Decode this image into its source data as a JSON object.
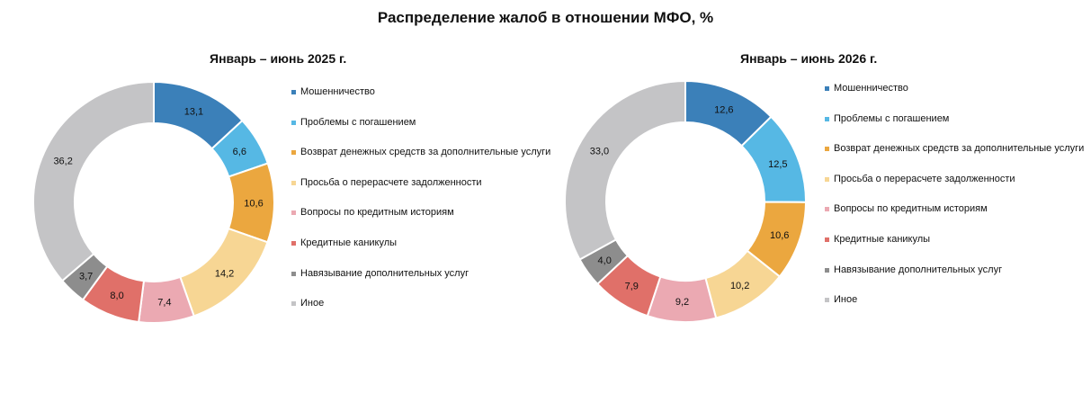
{
  "title": "Распределение жалоб в отношении МФО, %",
  "chart_data": [
    {
      "type": "pie",
      "title": "Январь – июнь 2025 г.",
      "categories": [
        "Мошенничество",
        "Проблемы с погашением",
        "Возврат денежных средств за дополнительные услуги",
        "Просьба о перерасчете задолженности",
        "Вопросы по кредитным историям",
        "Кредитные каникулы",
        "Навязывание дополнительных услуг",
        "Иное"
      ],
      "values": [
        13.1,
        6.6,
        10.6,
        14.2,
        7.4,
        8.0,
        3.7,
        36.2
      ],
      "labels": [
        "13,1",
        "6,6",
        "10,6",
        "14,2",
        "7,4",
        "8,0",
        "3,7",
        "36,2"
      ],
      "colors": [
        "#3b80b9",
        "#56b8e4",
        "#eba73f",
        "#f7d694",
        "#eba9b2",
        "#e07069",
        "#8d8d8d",
        "#c4c4c6"
      ],
      "legend": "right"
    },
    {
      "type": "pie",
      "title": "Январь – июнь 2026 г.",
      "categories": [
        "Мошенничество",
        "Проблемы с погашением",
        "Возврат денежных средств за дополнительные услуги",
        "Просьба о перерасчете задолженности",
        "Вопросы по кредитным историям",
        "Кредитные каникулы",
        "Навязывание дополнительных услуг",
        "Иное"
      ],
      "values": [
        12.6,
        12.5,
        10.6,
        10.2,
        9.2,
        7.9,
        4.0,
        33.0
      ],
      "labels": [
        "12,6",
        "12,5",
        "10,6",
        "10,2",
        "9,2",
        "7,9",
        "4,0",
        "33,0"
      ],
      "colors": [
        "#3b80b9",
        "#56b8e4",
        "#eba73f",
        "#f7d694",
        "#eba9b2",
        "#e07069",
        "#8d8d8d",
        "#c4c4c6"
      ],
      "legend": "right"
    }
  ]
}
